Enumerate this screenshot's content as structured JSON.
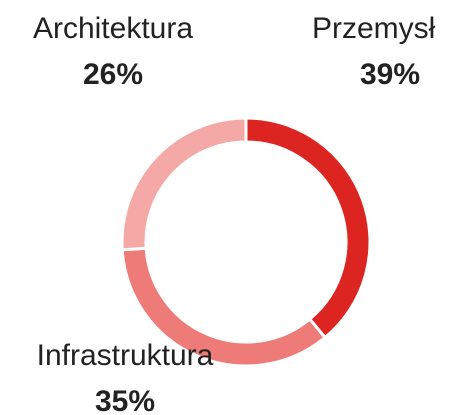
{
  "chart_data": {
    "type": "donut",
    "categories": [
      "Przemysł",
      "Infrastruktura",
      "Architektura"
    ],
    "values": [
      39,
      35,
      26
    ],
    "value_labels": [
      "39%",
      "35%",
      "26%"
    ],
    "colors": [
      "#dc2520",
      "#ef7b78",
      "#f4a9a6"
    ]
  }
}
